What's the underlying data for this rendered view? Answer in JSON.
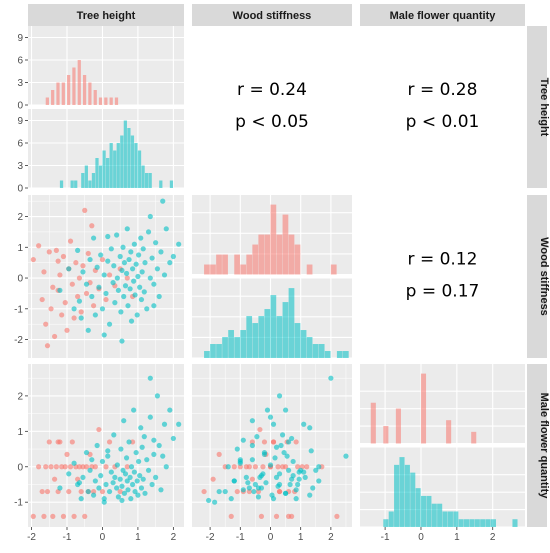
{
  "colors": {
    "group_a": "#F8766D",
    "group_b": "#00BFC4",
    "panel_bg": "#EBEBEB",
    "grid_major": "#FFFFFF",
    "strip_bg": "#D9D9D9"
  },
  "chart_data": {
    "type": "scatter",
    "variables": [
      "Tree height",
      "Wood stiffness",
      "Male flower quantity"
    ],
    "axes": {
      "Tree height": {
        "range": [
          -2.1,
          2.3
        ],
        "ticks": [
          -2,
          -1,
          0,
          1,
          2
        ]
      },
      "Wood stiffness": {
        "range": [
          -2.6,
          2.7
        ],
        "ticks": [
          -2,
          -1,
          0,
          1,
          2
        ]
      },
      "Male flower quantity": {
        "range": [
          -1.7,
          2.9
        ],
        "ticks": [
          -1,
          0,
          1,
          2
        ]
      }
    },
    "upper_panels": [
      {
        "row": "Tree height",
        "col": "Wood stiffness",
        "r_text": "r = 0.24",
        "p_text": "p < 0.05"
      },
      {
        "row": "Tree height",
        "col": "Male flower quantity",
        "r_text": "r = 0.28",
        "p_text": "p < 0.01"
      },
      {
        "row": "Wood stiffness",
        "col": "Male flower quantity",
        "r_text": "r = 0.12",
        "p_text": "p = 0.17"
      }
    ],
    "diagonal_histograms": {
      "Tree height": {
        "count_ticks": [
          0,
          3,
          6,
          9
        ],
        "count_max": 10,
        "group_a": {
          "bins": [
            -1.6,
            -1.45,
            -1.3,
            -1.15,
            -1.0,
            -0.85,
            -0.7,
            -0.55,
            -0.4,
            -0.25,
            -0.1,
            0.05,
            0.2,
            0.35
          ],
          "counts": [
            1,
            2,
            3,
            3,
            4,
            5,
            6,
            4,
            3,
            2,
            1,
            1,
            1,
            1
          ]
        },
        "group_b": {
          "bins": [
            -1.2,
            -0.9,
            -0.8,
            -0.6,
            -0.5,
            -0.4,
            -0.3,
            -0.2,
            -0.1,
            0.0,
            0.1,
            0.2,
            0.3,
            0.4,
            0.5,
            0.6,
            0.7,
            0.8,
            0.9,
            1.0,
            1.1,
            1.2,
            1.3,
            1.6,
            1.9
          ],
          "counts": [
            1,
            1,
            1,
            2,
            3,
            1,
            2,
            4,
            3,
            5,
            4,
            6,
            5,
            6,
            7,
            9,
            8,
            7,
            6,
            5,
            3,
            2,
            2,
            1,
            1
          ]
        }
      },
      "Wood stiffness": {
        "group_a": {
          "bins": [
            -2.2,
            -2.0,
            -1.8,
            -1.6,
            -1.2,
            -1.0,
            -0.8,
            -0.6,
            -0.4,
            -0.2,
            0.0,
            0.2,
            0.4,
            0.6,
            0.8,
            1.2,
            2.0
          ],
          "counts": [
            1,
            1,
            2,
            2,
            2,
            1,
            2,
            3,
            4,
            4,
            7,
            4,
            6,
            4,
            3,
            1,
            1
          ]
        },
        "group_b": {
          "bins": [
            -2.2,
            -2.0,
            -1.8,
            -1.6,
            -1.4,
            -1.2,
            -1.0,
            -0.8,
            -0.6,
            -0.4,
            -0.2,
            0.0,
            0.2,
            0.4,
            0.6,
            0.8,
            1.0,
            1.2,
            1.4,
            1.6,
            1.8,
            2.2,
            2.4
          ],
          "counts": [
            1,
            2,
            2,
            3,
            4,
            3,
            4,
            6,
            5,
            6,
            7,
            9,
            6,
            8,
            10,
            5,
            4,
            3,
            2,
            2,
            1,
            1,
            1
          ]
        }
      },
      "Male flower quantity": {
        "group_a": {
          "bins": [
            -1.4,
            -1.05,
            -0.7,
            0.0,
            0.7,
            1.4
          ],
          "counts": [
            7,
            3,
            6,
            12,
            4,
            2
          ]
        },
        "group_b": {
          "bins": [
            -1.05,
            -0.9,
            -0.75,
            -0.6,
            -0.45,
            -0.3,
            -0.15,
            0.0,
            0.15,
            0.3,
            0.45,
            0.6,
            0.75,
            0.9,
            1.05,
            1.2,
            1.35,
            1.5,
            1.65,
            1.8,
            1.95,
            2.55
          ],
          "counts": [
            1,
            2,
            8,
            9,
            8,
            7,
            5,
            4,
            4,
            3,
            3,
            2,
            2,
            2,
            1,
            1,
            1,
            1,
            1,
            1,
            1,
            1
          ]
        }
      }
    },
    "points": [
      {
        "g": "a",
        "th": -1.95,
        "ws": 0.6,
        "mf": -1.4
      },
      {
        "g": "a",
        "th": -1.8,
        "ws": 1.05,
        "mf": 0.0
      },
      {
        "g": "a",
        "th": -1.7,
        "ws": -0.7,
        "mf": -0.7
      },
      {
        "g": "a",
        "th": -1.65,
        "ws": 0.2,
        "mf": -1.4
      },
      {
        "g": "a",
        "th": -1.6,
        "ws": -1.5,
        "mf": 0.0
      },
      {
        "g": "a",
        "th": -1.55,
        "ws": -2.2,
        "mf": -0.7
      },
      {
        "g": "a",
        "th": -1.5,
        "ws": 0.85,
        "mf": 0.7
      },
      {
        "g": "a",
        "th": -1.45,
        "ws": -1.0,
        "mf": 0.0
      },
      {
        "g": "a",
        "th": -1.4,
        "ws": -0.3,
        "mf": -1.4
      },
      {
        "g": "a",
        "th": -1.35,
        "ws": -1.9,
        "mf": -0.35
      },
      {
        "g": "a",
        "th": -1.3,
        "ws": 0.9,
        "mf": 0.0
      },
      {
        "g": "a",
        "th": -1.25,
        "ws": -0.4,
        "mf": -0.7
      },
      {
        "g": "a",
        "th": -1.2,
        "ws": 0.1,
        "mf": 0.7
      },
      {
        "g": "a",
        "th": -1.15,
        "ws": -1.2,
        "mf": 0.0
      },
      {
        "g": "a",
        "th": -1.1,
        "ws": 0.7,
        "mf": -1.4
      },
      {
        "g": "a",
        "th": -1.05,
        "ws": -0.8,
        "mf": 0.0
      },
      {
        "g": "a",
        "th": -1.0,
        "ws": -1.7,
        "mf": 0.35
      },
      {
        "g": "a",
        "th": -0.95,
        "ws": 0.3,
        "mf": -0.7
      },
      {
        "g": "a",
        "th": -0.9,
        "ws": 1.2,
        "mf": 0.0
      },
      {
        "g": "a",
        "th": -0.85,
        "ws": -0.2,
        "mf": 0.7
      },
      {
        "g": "a",
        "th": -0.8,
        "ws": -1.3,
        "mf": -1.4
      },
      {
        "g": "a",
        "th": -0.75,
        "ws": 0.5,
        "mf": 0.0
      },
      {
        "g": "a",
        "th": -0.7,
        "ws": -0.6,
        "mf": -0.35
      },
      {
        "g": "a",
        "th": -0.65,
        "ws": 0.0,
        "mf": 0.0
      },
      {
        "g": "a",
        "th": -0.6,
        "ws": -1.1,
        "mf": -0.7
      },
      {
        "g": "a",
        "th": -0.55,
        "ws": 0.4,
        "mf": 0.0
      },
      {
        "g": "a",
        "th": -0.5,
        "ws": 2.2,
        "mf": -1.4
      },
      {
        "g": "a",
        "th": -0.45,
        "ws": -0.5,
        "mf": 0.0
      },
      {
        "g": "a",
        "th": -0.4,
        "ws": 0.8,
        "mf": -0.7
      },
      {
        "g": "a",
        "th": -0.35,
        "ws": -0.15,
        "mf": 0.35
      },
      {
        "g": "a",
        "th": -0.3,
        "ws": 1.7,
        "mf": 0.0
      },
      {
        "g": "a",
        "th": -0.25,
        "ws": -0.9,
        "mf": -0.7
      },
      {
        "g": "a",
        "th": -0.2,
        "ws": 0.25,
        "mf": 0.0
      },
      {
        "g": "a",
        "th": -0.1,
        "ws": -0.35,
        "mf": 1.05
      },
      {
        "g": "a",
        "th": 0.0,
        "ws": 0.6,
        "mf": -0.7
      },
      {
        "g": "a",
        "th": 0.1,
        "ws": -0.7,
        "mf": 0.0
      },
      {
        "g": "a",
        "th": 0.2,
        "ws": 0.1,
        "mf": 0.7
      },
      {
        "g": "a",
        "th": 0.35,
        "ws": -0.25,
        "mf": 0.0
      },
      {
        "g": "a",
        "th": 0.5,
        "ws": 0.3,
        "mf": -0.7
      },
      {
        "g": "a",
        "th": 0.7,
        "ws": 0.0,
        "mf": 0.0
      },
      {
        "g": "a",
        "th": 0.85,
        "ws": -0.6,
        "mf": 0.7
      },
      {
        "g": "a",
        "th": -1.25,
        "ws": 0.55,
        "mf": 0.7
      },
      {
        "g": "b",
        "th": -1.2,
        "ws": -0.4,
        "mf": -0.6
      },
      {
        "g": "b",
        "th": -0.95,
        "ws": 0.3,
        "mf": -0.2
      },
      {
        "g": "b",
        "th": -0.8,
        "ws": -1.0,
        "mf": 0.1
      },
      {
        "g": "b",
        "th": -0.7,
        "ws": 0.9,
        "mf": -0.5
      },
      {
        "g": "b",
        "th": -0.6,
        "ws": -1.3,
        "mf": -0.9
      },
      {
        "g": "b",
        "th": -0.55,
        "ws": 0.2,
        "mf": -0.3
      },
      {
        "g": "b",
        "th": -0.45,
        "ws": -0.2,
        "mf": 0.4
      },
      {
        "g": "b",
        "th": -0.4,
        "ws": -1.7,
        "mf": -0.7
      },
      {
        "g": "b",
        "th": -0.35,
        "ws": 0.6,
        "mf": -0.1
      },
      {
        "g": "b",
        "th": -0.3,
        "ws": -0.6,
        "mf": 0.2
      },
      {
        "g": "b",
        "th": -0.25,
        "ws": 1.3,
        "mf": -0.8
      },
      {
        "g": "b",
        "th": -0.2,
        "ws": -1.2,
        "mf": -0.4
      },
      {
        "g": "b",
        "th": -0.15,
        "ws": 0.35,
        "mf": 0.6
      },
      {
        "g": "b",
        "th": -0.1,
        "ws": -0.3,
        "mf": -0.6
      },
      {
        "g": "b",
        "th": -0.05,
        "ws": 0.75,
        "mf": -0.25
      },
      {
        "g": "b",
        "th": 0.0,
        "ws": -1.0,
        "mf": 0.15
      },
      {
        "g": "b",
        "th": 0.05,
        "ws": 0.1,
        "mf": -0.9
      },
      {
        "g": "b",
        "th": 0.1,
        "ws": -0.5,
        "mf": -0.5
      },
      {
        "g": "b",
        "th": 0.15,
        "ws": 0.55,
        "mf": 0.3
      },
      {
        "g": "b",
        "th": 0.2,
        "ws": -1.5,
        "mf": -0.7
      },
      {
        "g": "b",
        "th": 0.25,
        "ws": 0.95,
        "mf": -0.15
      },
      {
        "g": "b",
        "th": 0.3,
        "ws": -0.15,
        "mf": -0.45
      },
      {
        "g": "b",
        "th": 0.32,
        "ws": 0.4,
        "mf": 0.9
      },
      {
        "g": "b",
        "th": 0.35,
        "ws": -0.8,
        "mf": -0.3
      },
      {
        "g": "b",
        "th": 0.4,
        "ws": 1.4,
        "mf": -0.6
      },
      {
        "g": "b",
        "th": 0.42,
        "ws": 0.0,
        "mf": 0.05
      },
      {
        "g": "b",
        "th": 0.45,
        "ws": -0.4,
        "mf": -0.85
      },
      {
        "g": "b",
        "th": 0.5,
        "ws": 0.7,
        "mf": -0.35
      },
      {
        "g": "b",
        "th": 0.52,
        "ws": -1.1,
        "mf": 0.5
      },
      {
        "g": "b",
        "th": 0.55,
        "ws": 0.25,
        "mf": -0.55
      },
      {
        "g": "b",
        "th": 0.58,
        "ws": 1.0,
        "mf": -0.1
      },
      {
        "g": "b",
        "th": 0.6,
        "ws": -0.6,
        "mf": 1.3
      },
      {
        "g": "b",
        "th": 0.62,
        "ws": 0.5,
        "mf": -0.75
      },
      {
        "g": "b",
        "th": 0.65,
        "ws": -0.25,
        "mf": -0.2
      },
      {
        "g": "b",
        "th": 0.68,
        "ws": 0.15,
        "mf": 0.25
      },
      {
        "g": "b",
        "th": 0.7,
        "ws": 1.6,
        "mf": -0.4
      },
      {
        "g": "b",
        "th": 0.72,
        "ws": -0.9,
        "mf": -0.65
      },
      {
        "g": "b",
        "th": 0.75,
        "ws": 0.6,
        "mf": 0.7
      },
      {
        "g": "b",
        "th": 0.78,
        "ws": -0.35,
        "mf": -0.3
      },
      {
        "g": "b",
        "th": 0.8,
        "ws": 0.85,
        "mf": -0.9
      },
      {
        "g": "b",
        "th": 0.82,
        "ws": -1.4,
        "mf": 0.0
      },
      {
        "g": "b",
        "th": 0.85,
        "ws": 0.3,
        "mf": -0.5
      },
      {
        "g": "b",
        "th": 0.88,
        "ws": -0.1,
        "mf": 1.6
      },
      {
        "g": "b",
        "th": 0.9,
        "ws": 1.1,
        "mf": -0.15
      },
      {
        "g": "b",
        "th": 0.92,
        "ws": -0.55,
        "mf": -0.7
      },
      {
        "g": "b",
        "th": 0.95,
        "ws": 0.45,
        "mf": 0.4
      },
      {
        "g": "b",
        "th": 0.98,
        "ws": -1.2,
        "mf": -0.4
      },
      {
        "g": "b",
        "th": 1.0,
        "ws": 0.05,
        "mf": -0.8
      },
      {
        "g": "b",
        "th": 1.02,
        "ws": 0.75,
        "mf": 0.15
      },
      {
        "g": "b",
        "th": 1.05,
        "ws": -0.3,
        "mf": -0.25
      },
      {
        "g": "b",
        "th": 1.08,
        "ws": 1.3,
        "mf": 1.1
      },
      {
        "g": "b",
        "th": 1.1,
        "ws": -0.7,
        "mf": -0.6
      },
      {
        "g": "b",
        "th": 1.12,
        "ws": 0.2,
        "mf": 0.55
      },
      {
        "g": "b",
        "th": 1.15,
        "ws": 0.95,
        "mf": -0.35
      },
      {
        "g": "b",
        "th": 1.18,
        "ws": -0.45,
        "mf": 0.85
      },
      {
        "g": "b",
        "th": 1.2,
        "ws": 0.5,
        "mf": -0.75
      },
      {
        "g": "b",
        "th": 1.25,
        "ws": -1.0,
        "mf": 0.2
      },
      {
        "g": "b",
        "th": 1.3,
        "ws": 1.5,
        "mf": -0.1
      },
      {
        "g": "b",
        "th": 1.35,
        "ws": 0.0,
        "mf": 1.4
      },
      {
        "g": "b",
        "th": 1.4,
        "ws": 0.65,
        "mf": -0.5
      },
      {
        "g": "b",
        "th": 1.45,
        "ws": -0.2,
        "mf": 0.35
      },
      {
        "g": "b",
        "th": 1.5,
        "ws": 1.15,
        "mf": -0.3
      },
      {
        "g": "b",
        "th": 1.55,
        "ws": 0.3,
        "mf": 2.0
      },
      {
        "g": "b",
        "th": 1.6,
        "ws": -0.6,
        "mf": 0.6
      },
      {
        "g": "b",
        "th": 1.65,
        "ws": 0.85,
        "mf": -0.65
      },
      {
        "g": "b",
        "th": 1.7,
        "ws": 2.5,
        "mf": 0.3
      },
      {
        "g": "b",
        "th": 1.75,
        "ws": 0.1,
        "mf": 1.2
      },
      {
        "g": "b",
        "th": 1.8,
        "ws": 1.6,
        "mf": 0.0
      },
      {
        "g": "b",
        "th": 1.9,
        "ws": 0.5,
        "mf": 1.6
      },
      {
        "g": "b",
        "th": 2.0,
        "ws": 0.7,
        "mf": 0.8
      },
      {
        "g": "b",
        "th": 2.15,
        "ws": 1.1,
        "mf": 1.2
      },
      {
        "g": "b",
        "th": 1.35,
        "ws": 2.0,
        "mf": 2.5
      },
      {
        "g": "b",
        "th": 0.15,
        "ws": 1.35,
        "mf": 0.45
      },
      {
        "g": "b",
        "th": -0.65,
        "ws": -0.75,
        "mf": -0.45
      },
      {
        "g": "b",
        "th": 0.05,
        "ws": -1.85,
        "mf": -1.0
      },
      {
        "g": "b",
        "th": 0.55,
        "ws": -2.05,
        "mf": -0.95
      },
      {
        "g": "b",
        "th": 1.45,
        "ws": -0.9,
        "mf": 0.75
      }
    ]
  }
}
